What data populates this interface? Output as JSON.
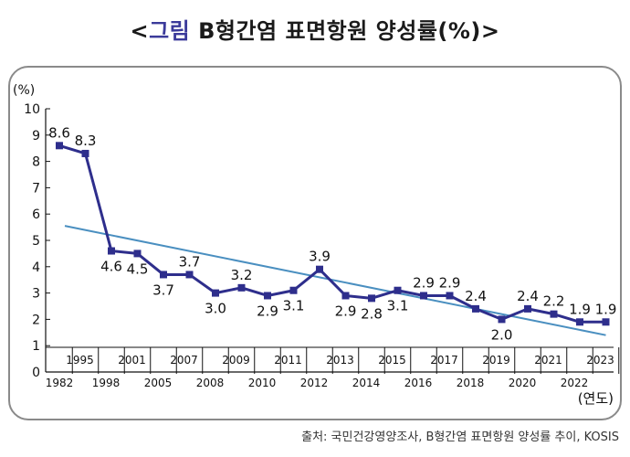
{
  "title": {
    "open_bracket": "<",
    "prefix": "그림",
    "main": " B형간염 표면항원 양성률(%)",
    "close_bracket": ">"
  },
  "source": "출처: 국민건강영양조사, B형간염 표면항원 양성률 추이, KOSIS",
  "chart_data": {
    "type": "line",
    "ylabel": "(%)",
    "xlabel": "(연도)",
    "ylim": [
      0,
      10
    ],
    "yticks": [
      0,
      1,
      2,
      3,
      4,
      5,
      6,
      7,
      8,
      9,
      10
    ],
    "grid": false,
    "legend": "none",
    "x_labels_row1": [
      "1995",
      "2001",
      "2007",
      "2009",
      "2011",
      "2013",
      "2015",
      "2017",
      "2019",
      "2021",
      "2023"
    ],
    "x_labels_row2": [
      "1982",
      "1998",
      "2005",
      "2008",
      "2010",
      "2012",
      "2014",
      "2016",
      "2018",
      "2020",
      "2022"
    ],
    "series": [
      {
        "values": [
          8.6,
          8.3,
          4.6,
          4.5,
          3.7,
          3.7,
          3.0,
          3.2,
          2.9,
          3.1,
          3.9,
          2.9,
          2.8,
          3.1,
          2.9,
          2.9,
          2.4,
          2.0,
          2.4,
          2.2,
          1.9,
          1.9
        ],
        "labels": [
          "8.6",
          "8.3",
          "4.6",
          "4.5",
          "3.7",
          "3.7",
          "3.0",
          "3.2",
          "2.9",
          "3.1",
          "3.9",
          "2.9",
          "2.8",
          "3.1",
          "2.9",
          "2.9",
          "2.4",
          "2.0",
          "2.4",
          "2.2",
          "1.9",
          "1.9"
        ],
        "label_pos": [
          "above",
          "above",
          "below",
          "below",
          "below",
          "above",
          "below",
          "above",
          "below",
          "below",
          "above",
          "below",
          "below",
          "below",
          "above",
          "above",
          "above",
          "below",
          "above",
          "above",
          "above",
          "above"
        ],
        "color": "#2e2e8c"
      }
    ],
    "trendline": {
      "start": 5.55,
      "end": 1.4,
      "color": "#4a8fc0"
    }
  }
}
